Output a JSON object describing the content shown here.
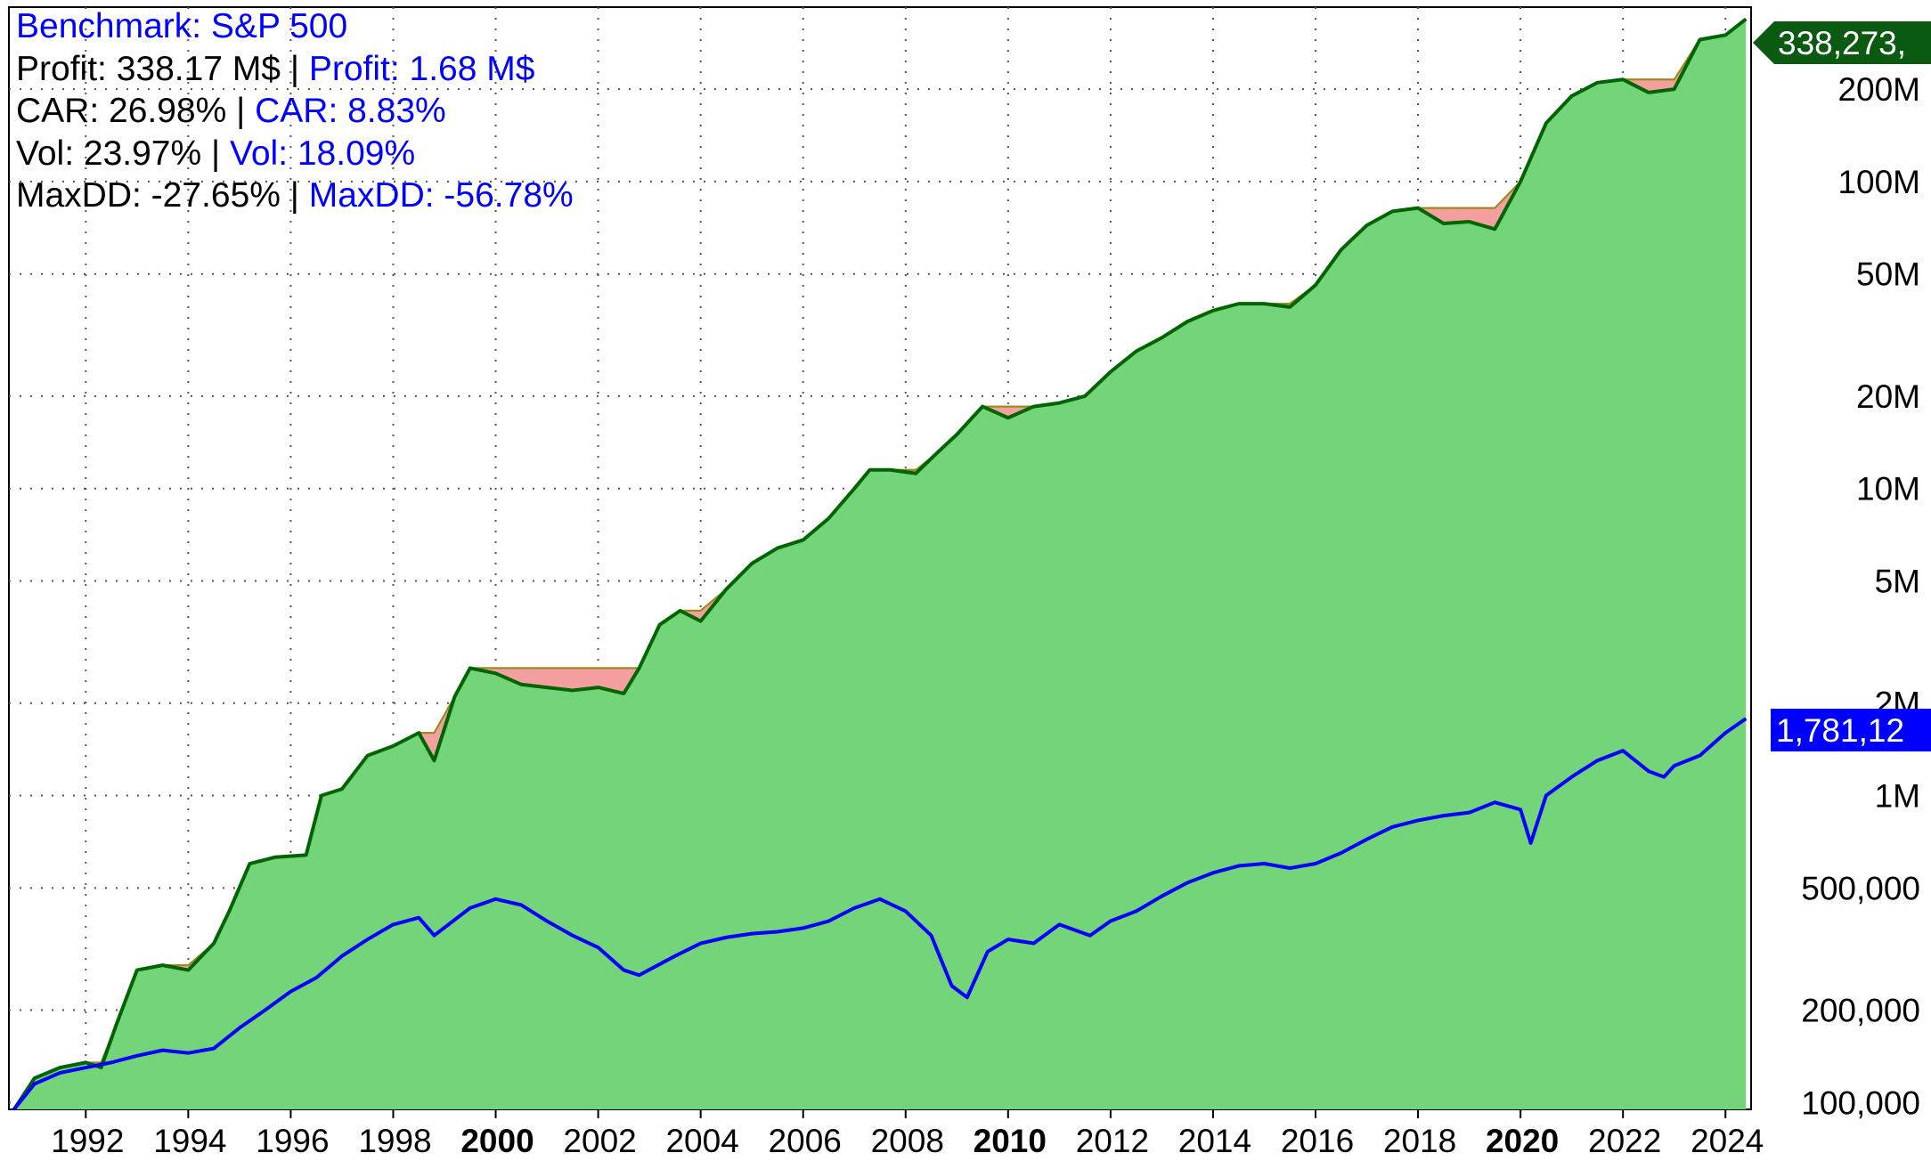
{
  "chart_data": {
    "type": "area",
    "title": "",
    "xlabel": "",
    "ylabel": "",
    "y_scale": "log",
    "xlim": [
      1990.5,
      2024.5
    ],
    "ylim": [
      95000,
      370000000
    ],
    "grid": "dotted",
    "y_ticks": [
      {
        "value": 100000,
        "label": "100,000"
      },
      {
        "value": 200000,
        "label": "200,000"
      },
      {
        "value": 500000,
        "label": "500,000"
      },
      {
        "value": 1000000,
        "label": "1M"
      },
      {
        "value": 2000000,
        "label": "2M"
      },
      {
        "value": 5000000,
        "label": "5M"
      },
      {
        "value": 10000000,
        "label": "10M"
      },
      {
        "value": 20000000,
        "label": "20M"
      },
      {
        "value": 50000000,
        "label": "50M"
      },
      {
        "value": 100000000,
        "label": "100M"
      },
      {
        "value": 200000000,
        "label": "200M"
      }
    ],
    "x_ticks": [
      {
        "value": 1992,
        "label": "1992",
        "bold": false
      },
      {
        "value": 1994,
        "label": "1994",
        "bold": false
      },
      {
        "value": 1996,
        "label": "1996",
        "bold": false
      },
      {
        "value": 1998,
        "label": "1998",
        "bold": false
      },
      {
        "value": 2000,
        "label": "2000",
        "bold": true
      },
      {
        "value": 2002,
        "label": "2002",
        "bold": false
      },
      {
        "value": 2004,
        "label": "2004",
        "bold": false
      },
      {
        "value": 2006,
        "label": "2006",
        "bold": false
      },
      {
        "value": 2008,
        "label": "2008",
        "bold": false
      },
      {
        "value": 2010,
        "label": "2010",
        "bold": true
      },
      {
        "value": 2012,
        "label": "2012",
        "bold": false
      },
      {
        "value": 2014,
        "label": "2014",
        "bold": false
      },
      {
        "value": 2016,
        "label": "2016",
        "bold": false
      },
      {
        "value": 2018,
        "label": "2018",
        "bold": false
      },
      {
        "value": 2020,
        "label": "2020",
        "bold": true
      },
      {
        "value": 2022,
        "label": "2022",
        "bold": false
      },
      {
        "value": 2024,
        "label": "2024",
        "bold": false
      }
    ],
    "series": [
      {
        "color": "#006400",
        "fill": "#74d47a",
        "drawdown_fill": "#f4a0a0",
        "last_value_label": "338,273,",
        "x": [
          1990.6,
          1991.0,
          1991.5,
          1992.0,
          1992.3,
          1992.6,
          1993.0,
          1993.5,
          1994.0,
          1994.5,
          1994.8,
          1995.2,
          1995.7,
          1996.3,
          1996.6,
          1997.0,
          1997.5,
          1998.0,
          1998.5,
          1998.8,
          1999.2,
          1999.5,
          2000.0,
          2000.5,
          2001.0,
          2001.5,
          2002.0,
          2002.5,
          2002.8,
          2003.2,
          2003.6,
          2004.0,
          2004.5,
          2005.0,
          2005.5,
          2006.0,
          2006.5,
          2007.0,
          2007.3,
          2007.7,
          2008.2,
          2008.6,
          2009.0,
          2009.5,
          2010.0,
          2010.5,
          2011.0,
          2011.5,
          2012.0,
          2012.5,
          2013.0,
          2013.5,
          2014.0,
          2014.5,
          2015.0,
          2015.5,
          2016.0,
          2016.5,
          2017.0,
          2017.5,
          2018.0,
          2018.5,
          2019.0,
          2019.5,
          2020.0,
          2020.5,
          2021.0,
          2021.5,
          2022.0,
          2022.5,
          2023.0,
          2023.5,
          2024.0,
          2024.4
        ],
        "y": [
          95000,
          120000,
          130000,
          135000,
          130000,
          180000,
          270000,
          280000,
          270000,
          330000,
          420000,
          600000,
          630000,
          640000,
          1000000,
          1050000,
          1350000,
          1450000,
          1600000,
          1300000,
          2100000,
          2600000,
          2500000,
          2300000,
          2250000,
          2200000,
          2250000,
          2150000,
          2600000,
          3600000,
          4000000,
          3700000,
          4700000,
          5700000,
          6400000,
          6800000,
          8000000,
          10000000,
          11500000,
          11500000,
          11200000,
          13000000,
          15000000,
          18500000,
          17000000,
          18500000,
          19000000,
          20000000,
          24000000,
          28000000,
          31000000,
          35000000,
          38000000,
          40000000,
          40000000,
          39000000,
          46000000,
          60000000,
          72000000,
          80000000,
          82000000,
          73000000,
          74000000,
          70000000,
          100000000,
          155000000,
          190000000,
          210000000,
          215000000,
          195000000,
          200000000,
          290000000,
          300000000,
          338273000
        ]
      },
      {
        "name": "",
        "color": "#0000ff",
        "last_value_label": "1,781,12",
        "x": [
          1990.6,
          1991.0,
          1991.5,
          1992.0,
          1992.5,
          1993.0,
          1993.5,
          1994.0,
          1994.5,
          1995.0,
          1995.5,
          1996.0,
          1996.5,
          1997.0,
          1997.5,
          1998.0,
          1998.5,
          1998.8,
          1999.5,
          2000.0,
          2000.5,
          2001.0,
          2001.5,
          2002.0,
          2002.5,
          2002.8,
          2003.5,
          2004.0,
          2004.5,
          2005.0,
          2005.5,
          2006.0,
          2006.5,
          2007.0,
          2007.5,
          2008.0,
          2008.5,
          2008.9,
          2009.2,
          2009.6,
          2010.0,
          2010.5,
          2011.0,
          2011.6,
          2012.0,
          2012.5,
          2013.0,
          2013.5,
          2014.0,
          2014.5,
          2015.0,
          2015.5,
          2016.0,
          2016.5,
          2017.0,
          2017.5,
          2018.0,
          2018.5,
          2019.0,
          2019.5,
          2020.0,
          2020.2,
          2020.5,
          2021.0,
          2021.5,
          2022.0,
          2022.5,
          2022.8,
          2023.0,
          2023.5,
          2024.0,
          2024.4
        ],
        "y": [
          95000,
          115000,
          125000,
          130000,
          135000,
          142000,
          148000,
          145000,
          150000,
          175000,
          200000,
          230000,
          255000,
          300000,
          340000,
          380000,
          400000,
          350000,
          430000,
          460000,
          440000,
          390000,
          350000,
          320000,
          270000,
          260000,
          300000,
          330000,
          345000,
          355000,
          360000,
          370000,
          390000,
          430000,
          460000,
          420000,
          350000,
          240000,
          220000,
          310000,
          340000,
          330000,
          380000,
          350000,
          390000,
          420000,
          470000,
          520000,
          560000,
          590000,
          600000,
          580000,
          600000,
          650000,
          720000,
          790000,
          830000,
          860000,
          880000,
          950000,
          900000,
          700000,
          1000000,
          1150000,
          1300000,
          1400000,
          1200000,
          1150000,
          1250000,
          1350000,
          1600000,
          1781120
        ]
      }
    ],
    "info_lines": [
      [
        {
          "text": "Benchmark: S&P 500",
          "color": "blue"
        }
      ],
      [
        {
          "text": "Profit: 338.17 M$",
          "color": "black"
        },
        {
          "text": " | ",
          "color": "black"
        },
        {
          "text": "Profit: 1.68 M$",
          "color": "blue"
        }
      ],
      [
        {
          "text": "CAR: 26.98%",
          "color": "black"
        },
        {
          "text": " | ",
          "color": "black"
        },
        {
          "text": "CAR: 8.83%",
          "color": "blue"
        }
      ],
      [
        {
          "text": "Vol: 23.97%",
          "color": "black"
        },
        {
          "text": " | ",
          "color": "black"
        },
        {
          "text": "Vol: 18.09%",
          "color": "blue"
        }
      ],
      [
        {
          "text": "MaxDD: -27.65%",
          "color": "black"
        },
        {
          "text": " | ",
          "color": "black"
        },
        {
          "text": "MaxDD: -56.78%",
          "color": "blue"
        }
      ]
    ]
  }
}
